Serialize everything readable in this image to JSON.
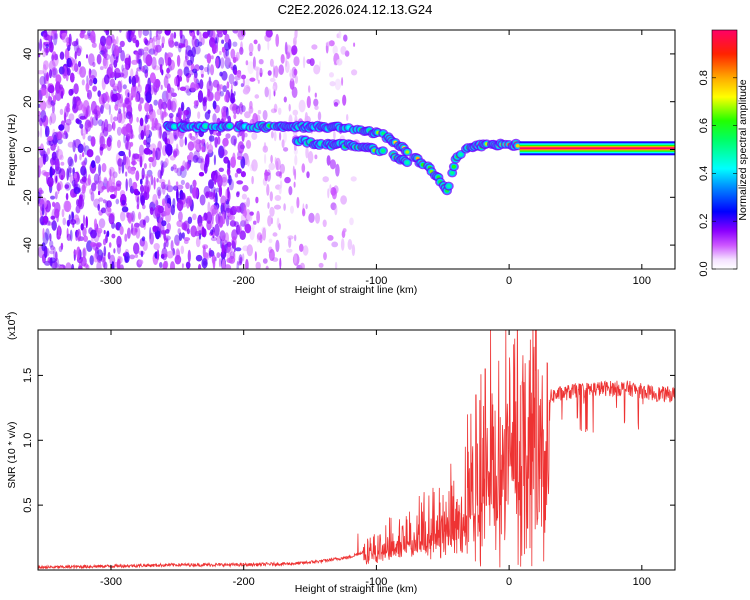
{
  "title": "C2E2.2026.024.12.13.G24",
  "chart_data": [
    {
      "type": "heatmap",
      "xlabel": "Height of straight line (km)",
      "ylabel": "Frequency (Hz)",
      "xlim": [
        -355,
        125
      ],
      "ylim": [
        -50,
        50
      ],
      "xticks": [
        -300,
        -200,
        -100,
        0,
        100
      ],
      "yticks": [
        -40,
        -20,
        0,
        20,
        40
      ],
      "colorbar": {
        "label": "Normalized spectral amplitude",
        "range": [
          0,
          1
        ],
        "ticks": [
          "0.0",
          "0.2",
          "0.4",
          "0.6",
          "0.8"
        ],
        "tick_values": [
          0,
          0.2,
          0.4,
          0.6,
          0.8
        ],
        "colors": [
          "#ffffff",
          "#ff00ff",
          "#8800ff",
          "#0000ff",
          "#00ffff",
          "#00ff00",
          "#ffff00",
          "#ff8800",
          "#ff0000",
          "#ff0066"
        ]
      },
      "signal_track": [
        {
          "x": -260,
          "y": 9.5,
          "amp": 0.45
        },
        {
          "x": -240,
          "y": 9.5,
          "amp": 0.4
        },
        {
          "x": -200,
          "y": 9.5,
          "amp": 0.5
        },
        {
          "x": -170,
          "y": 9.5,
          "amp": 0.5
        },
        {
          "x": -140,
          "y": 9.5,
          "amp": 0.45
        },
        {
          "x": -125,
          "y": 9,
          "amp": 0.45
        },
        {
          "x": -110,
          "y": 8,
          "amp": 0.5
        },
        {
          "x": -95,
          "y": 6,
          "amp": 0.6
        },
        {
          "x": -80,
          "y": 1,
          "amp": 0.7
        },
        {
          "x": -70,
          "y": -4,
          "amp": 0.7
        },
        {
          "x": -60,
          "y": -8,
          "amp": 0.6
        },
        {
          "x": -52,
          "y": -13,
          "amp": 0.6
        },
        {
          "x": -47,
          "y": -18,
          "amp": 0.55
        },
        {
          "x": -40,
          "y": -4,
          "amp": 0.5
        },
        {
          "x": -30,
          "y": 1,
          "amp": 0.6
        },
        {
          "x": -15,
          "y": 2,
          "amp": 0.75
        },
        {
          "x": 0,
          "y": 2,
          "amp": 0.85
        },
        {
          "x": 125,
          "y": 0.5,
          "amp": 1.0
        }
      ],
      "secondary_track": [
        {
          "x": -160,
          "y": 4,
          "amp": 0.45
        },
        {
          "x": -140,
          "y": 2,
          "amp": 0.5
        },
        {
          "x": -120,
          "y": 2,
          "amp": 0.55
        },
        {
          "x": -100,
          "y": 0,
          "amp": 0.55
        },
        {
          "x": -90,
          "y": -2,
          "amp": 0.6
        },
        {
          "x": -75,
          "y": -6,
          "amp": 0.6
        }
      ]
    },
    {
      "type": "line",
      "xlabel": "Height of straight line (km)",
      "ylabel": "SNR (10 * v/v)",
      "yscale_label": "(x10",
      "yscale_exp": "4",
      "yscale_close": ")",
      "xlim": [
        -355,
        125
      ],
      "ylim": [
        0,
        1.85
      ],
      "xticks": [
        -300,
        -200,
        -100,
        0,
        100
      ],
      "yticks": [
        0.5,
        1.0,
        1.5
      ],
      "ytick_labels": [
        "0.5",
        "1.0",
        "1.5"
      ],
      "series_color": "#ee3333",
      "envelope_x": [
        -355,
        -300,
        -250,
        -200,
        -160,
        -140,
        -120,
        -110,
        -100,
        -80,
        -60,
        -45,
        -35,
        -25,
        -15,
        -5,
        5,
        15,
        25,
        35,
        50,
        70,
        90,
        110,
        125
      ],
      "envelope_y": [
        0.02,
        0.03,
        0.04,
        0.04,
        0.05,
        0.07,
        0.1,
        0.14,
        0.18,
        0.28,
        0.36,
        0.45,
        0.6,
        0.8,
        0.95,
        1.05,
        1.12,
        1.22,
        1.3,
        1.35,
        1.38,
        1.4,
        1.4,
        1.36,
        1.35
      ],
      "spikes": [
        {
          "x": -114,
          "y": 0.28
        },
        {
          "x": -75,
          "y": 0.45
        },
        {
          "x": -66,
          "y": 0.52
        },
        {
          "x": -64,
          "y": 0.6
        },
        {
          "x": -52,
          "y": 0.52
        },
        {
          "x": -43,
          "y": 0.65
        },
        {
          "x": -33,
          "y": 0.95
        },
        {
          "x": -25,
          "y": 1.35
        },
        {
          "x": -18,
          "y": 1.55
        },
        {
          "x": -14,
          "y": 1.88
        },
        {
          "x": -8,
          "y": 1.12
        },
        {
          "x": 5,
          "y": 1.3
        },
        {
          "x": 10,
          "y": 1.45
        },
        {
          "x": 25,
          "y": 1.5
        }
      ]
    }
  ]
}
